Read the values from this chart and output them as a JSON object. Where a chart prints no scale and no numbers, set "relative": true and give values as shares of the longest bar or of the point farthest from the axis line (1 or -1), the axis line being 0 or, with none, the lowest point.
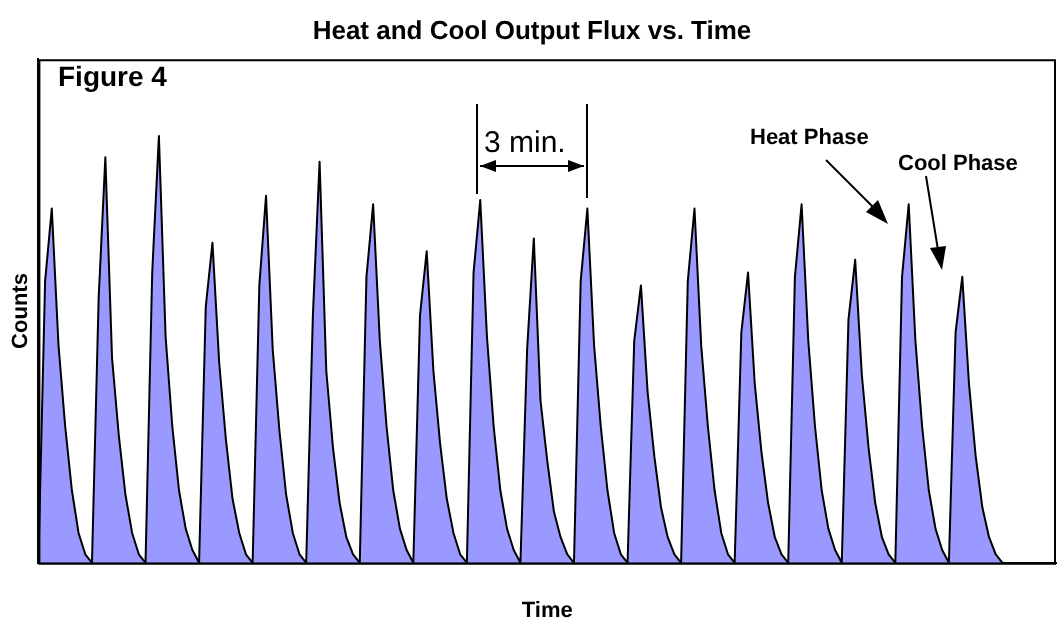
{
  "chart_data": {
    "type": "area",
    "title": "Heat and Cool Output Flux vs. Time",
    "xlabel": "Time",
    "ylabel": "Counts",
    "annotations": [
      "Figure 4",
      "3 min.",
      "Heat Phase",
      "Cool Phase"
    ],
    "relative": true,
    "grid": false,
    "legend": false,
    "categories": [
      null,
      null,
      null,
      null,
      null,
      null,
      null,
      null,
      null,
      null,
      null,
      null,
      null,
      null,
      null,
      null,
      null,
      null,
      null,
      null,
      null,
      null,
      null,
      null,
      null,
      null,
      null,
      null,
      null,
      null,
      null,
      null,
      null,
      null,
      null,
      null,
      null,
      null,
      null,
      null,
      null,
      null,
      null,
      null,
      null,
      null,
      null,
      null,
      null,
      null,
      null,
      null,
      null,
      null,
      null,
      null,
      null,
      null,
      null,
      null,
      null,
      null,
      null,
      null,
      null,
      null,
      null,
      null,
      null,
      null,
      null,
      null,
      null,
      null,
      null,
      null,
      null,
      null,
      null,
      null,
      null,
      null,
      null,
      null,
      null,
      null,
      null,
      null,
      null,
      null,
      null,
      null,
      null,
      null,
      null,
      null,
      null,
      null,
      null,
      null,
      null,
      null,
      null,
      null,
      null,
      null,
      null,
      null,
      null,
      null,
      null,
      null,
      null,
      null,
      null,
      null,
      null,
      null,
      null,
      null,
      null,
      null,
      null,
      null,
      null,
      null,
      null,
      null,
      null,
      null,
      null,
      null,
      null,
      null,
      null,
      null,
      null,
      null,
      null,
      null,
      null,
      null,
      null,
      null,
      null,
      null,
      null,
      null,
      null,
      null,
      null,
      null,
      null
    ],
    "series": [
      {
        "color": "#9999ff",
        "values": [
          0,
          0.66,
          0.83,
          0.51,
          0.32,
          0.17,
          0.07,
          0.02,
          0,
          0.62,
          0.95,
          0.48,
          0.3,
          0.16,
          0.07,
          0.02,
          0,
          0.68,
          1,
          0.53,
          0.32,
          0.17,
          0.08,
          0.03,
          0,
          0.6,
          0.75,
          0.47,
          0.29,
          0.15,
          0.07,
          0.02,
          0,
          0.65,
          0.86,
          0.5,
          0.31,
          0.16,
          0.07,
          0.02,
          0,
          0.58,
          0.94,
          0.45,
          0.27,
          0.14,
          0.06,
          0.02,
          0,
          0.67,
          0.84,
          0.52,
          0.32,
          0.17,
          0.08,
          0.03,
          0,
          0.58,
          0.73,
          0.45,
          0.28,
          0.15,
          0.07,
          0.02,
          0,
          0.68,
          0.85,
          0.53,
          0.32,
          0.17,
          0.08,
          0.03,
          0,
          0.5,
          0.76,
          0.38,
          0.24,
          0.12,
          0.06,
          0.02,
          0,
          0.66,
          0.83,
          0.51,
          0.32,
          0.17,
          0.07,
          0.02,
          0,
          0.52,
          0.65,
          0.4,
          0.25,
          0.13,
          0.06,
          0.02,
          0,
          0.66,
          0.83,
          0.51,
          0.32,
          0.17,
          0.07,
          0.02,
          0,
          0.54,
          0.68,
          0.42,
          0.26,
          0.14,
          0.06,
          0.02,
          0,
          0.67,
          0.84,
          0.52,
          0.32,
          0.17,
          0.08,
          0.03,
          0,
          0.57,
          0.71,
          0.44,
          0.27,
          0.14,
          0.06,
          0.02,
          0,
          0.67,
          0.84,
          0.52,
          0.32,
          0.17,
          0.08,
          0.03,
          0,
          0.54,
          0.67,
          0.42,
          0.25,
          0.13,
          0.06,
          0.02,
          0,
          null,
          null,
          null,
          null,
          null,
          null,
          null,
          null
        ]
      }
    ]
  }
}
